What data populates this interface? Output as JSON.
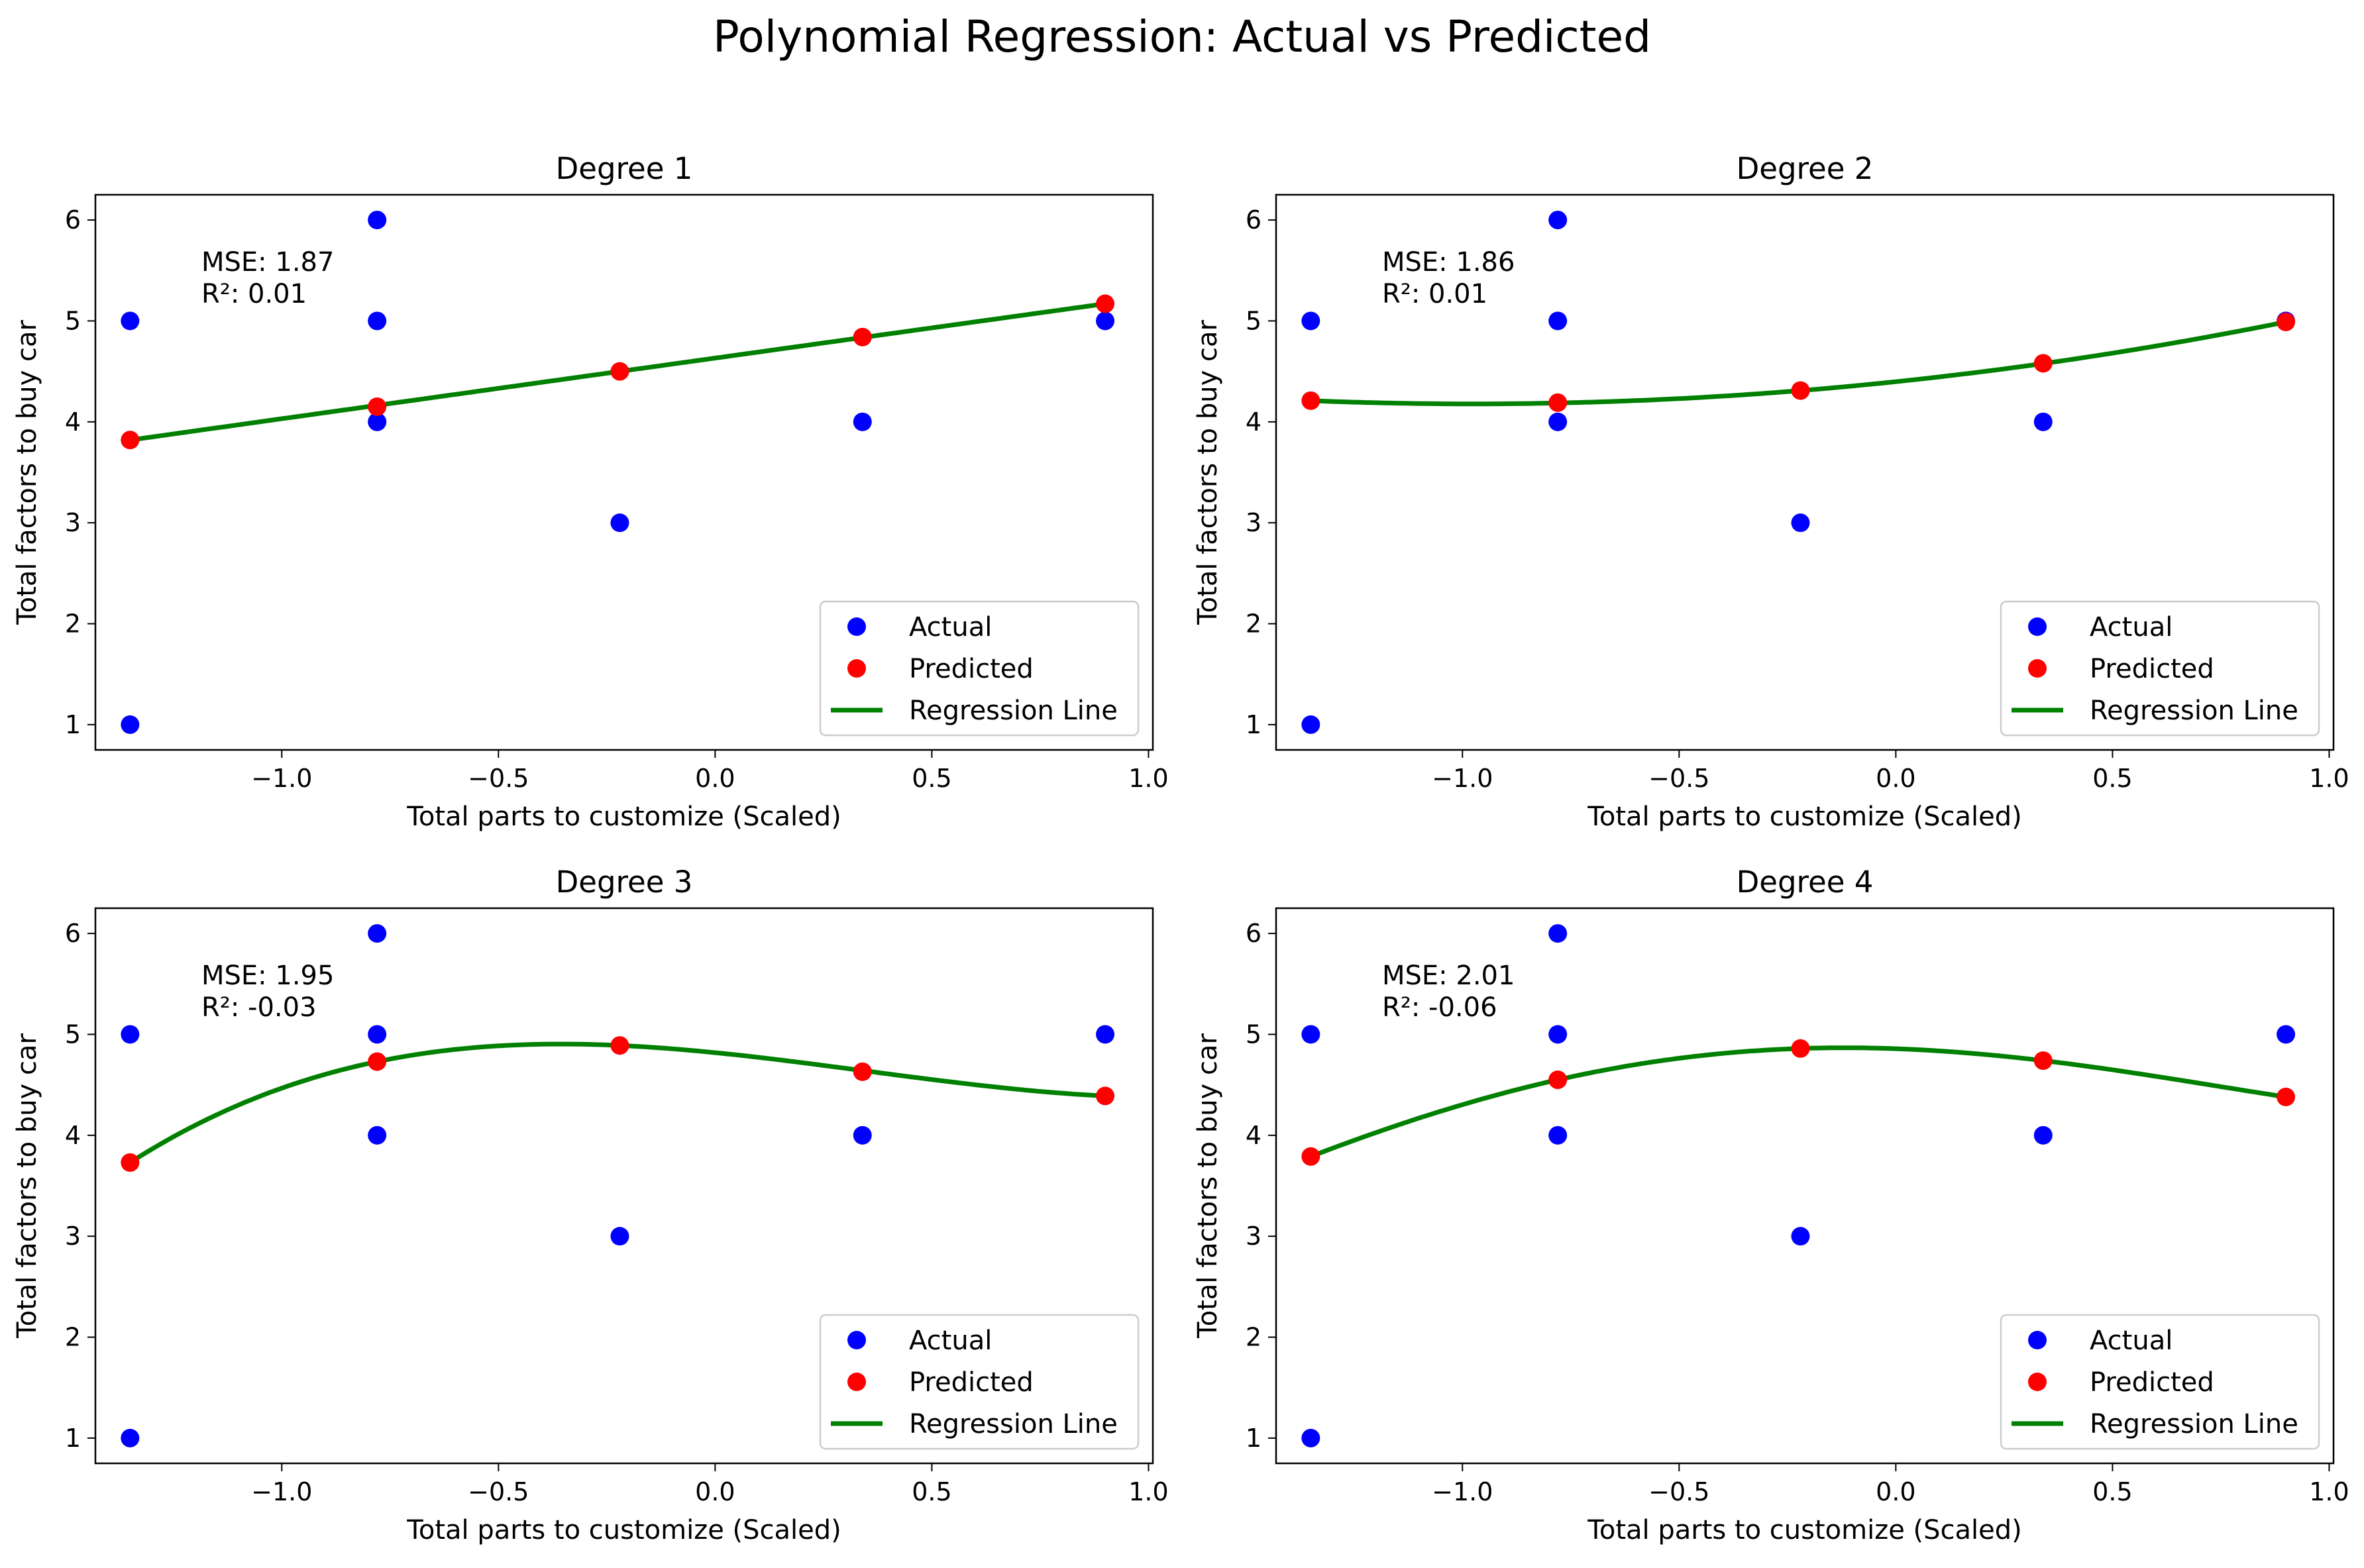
{
  "figure": {
    "suptitle": "Polynomial Regression: Actual vs Predicted"
  },
  "colors": {
    "actual": "#0000ff",
    "predicted": "#ff0000",
    "regression_line": "#008000",
    "axes": "#000000",
    "background": "#ffffff"
  },
  "chart_data": [
    {
      "type": "scatter",
      "title": "Degree 1",
      "xlabel": "Total parts to customize (Scaled)",
      "ylabel": "Total factors to buy car",
      "xlim": [
        -1.43,
        1.01
      ],
      "ylim": [
        0.75,
        6.25
      ],
      "xticks": [
        -1.0,
        -0.5,
        0.0,
        0.5,
        1.0
      ],
      "xtick_labels": [
        "−1.0",
        "−0.5",
        "0.0",
        "0.5",
        "1.0"
      ],
      "yticks": [
        1,
        2,
        3,
        4,
        5,
        6
      ],
      "ytick_labels": [
        "1",
        "2",
        "3",
        "4",
        "5",
        "6"
      ],
      "grid": false,
      "legend_position": "lower-right",
      "annotation": {
        "mse": "MSE: 1.87",
        "r2": "R²: 0.01"
      },
      "series": [
        {
          "name": "Actual",
          "kind": "scatter",
          "points": [
            [
              -1.35,
              5
            ],
            [
              -1.35,
              1
            ],
            [
              -0.78,
              6
            ],
            [
              -0.78,
              5
            ],
            [
              -0.78,
              4
            ],
            [
              -0.22,
              3
            ],
            [
              0.34,
              4
            ],
            [
              0.9,
              5
            ]
          ]
        },
        {
          "name": "Predicted",
          "kind": "scatter",
          "points": [
            [
              -1.35,
              3.82
            ],
            [
              -0.78,
              4.15
            ],
            [
              -0.22,
              4.5
            ],
            [
              0.34,
              4.84
            ],
            [
              0.9,
              5.17
            ]
          ]
        },
        {
          "name": "Regression Line",
          "kind": "line",
          "poly_fit": [
            [
              -1.35,
              3.82
            ],
            [
              -0.22,
              4.5
            ],
            [
              0.9,
              5.17
            ]
          ]
        }
      ]
    },
    {
      "type": "scatter",
      "title": "Degree 2",
      "xlabel": "Total parts to customize (Scaled)",
      "ylabel": "Total factors to buy car",
      "xlim": [
        -1.43,
        1.01
      ],
      "ylim": [
        0.75,
        6.25
      ],
      "xticks": [
        -1.0,
        -0.5,
        0.0,
        0.5,
        1.0
      ],
      "xtick_labels": [
        "−1.0",
        "−0.5",
        "0.0",
        "0.5",
        "1.0"
      ],
      "yticks": [
        1,
        2,
        3,
        4,
        5,
        6
      ],
      "ytick_labels": [
        "1",
        "2",
        "3",
        "4",
        "5",
        "6"
      ],
      "grid": false,
      "legend_position": "lower-right",
      "annotation": {
        "mse": "MSE: 1.86",
        "r2": "R²: 0.01"
      },
      "series": [
        {
          "name": "Actual",
          "kind": "scatter",
          "points": [
            [
              -1.35,
              5
            ],
            [
              -1.35,
              1
            ],
            [
              -0.78,
              6
            ],
            [
              -0.78,
              5
            ],
            [
              -0.78,
              4
            ],
            [
              -0.22,
              3
            ],
            [
              0.34,
              4
            ],
            [
              0.9,
              5
            ]
          ]
        },
        {
          "name": "Predicted",
          "kind": "scatter",
          "points": [
            [
              -1.35,
              4.21
            ],
            [
              -0.78,
              4.19
            ],
            [
              -0.22,
              4.31
            ],
            [
              0.34,
              4.58
            ],
            [
              0.9,
              4.99
            ]
          ]
        },
        {
          "name": "Regression Line",
          "kind": "line",
          "poly_fit": [
            [
              -1.35,
              4.21
            ],
            [
              -0.22,
              4.31
            ],
            [
              0.9,
              4.99
            ]
          ]
        }
      ]
    },
    {
      "type": "scatter",
      "title": "Degree 3",
      "xlabel": "Total parts to customize (Scaled)",
      "ylabel": "Total factors to buy car",
      "xlim": [
        -1.43,
        1.01
      ],
      "ylim": [
        0.75,
        6.25
      ],
      "xticks": [
        -1.0,
        -0.5,
        0.0,
        0.5,
        1.0
      ],
      "xtick_labels": [
        "−1.0",
        "−0.5",
        "0.0",
        "0.5",
        "1.0"
      ],
      "yticks": [
        1,
        2,
        3,
        4,
        5,
        6
      ],
      "ytick_labels": [
        "1",
        "2",
        "3",
        "4",
        "5",
        "6"
      ],
      "grid": false,
      "legend_position": "lower-right",
      "annotation": {
        "mse": "MSE: 1.95",
        "r2": "R²: -0.03"
      },
      "series": [
        {
          "name": "Actual",
          "kind": "scatter",
          "points": [
            [
              -1.35,
              5
            ],
            [
              -1.35,
              1
            ],
            [
              -0.78,
              6
            ],
            [
              -0.78,
              5
            ],
            [
              -0.78,
              4
            ],
            [
              -0.22,
              3
            ],
            [
              0.34,
              4
            ],
            [
              0.9,
              5
            ]
          ]
        },
        {
          "name": "Predicted",
          "kind": "scatter",
          "points": [
            [
              -1.35,
              3.73
            ],
            [
              -0.78,
              4.73
            ],
            [
              -0.22,
              4.89
            ],
            [
              0.34,
              4.63
            ],
            [
              0.9,
              4.39
            ]
          ]
        },
        {
          "name": "Regression Line",
          "kind": "line",
          "poly_fit": [
            [
              -1.35,
              3.73
            ],
            [
              -0.78,
              4.73
            ],
            [
              -0.22,
              4.89
            ],
            [
              0.9,
              4.39
            ]
          ]
        }
      ]
    },
    {
      "type": "scatter",
      "title": "Degree 4",
      "xlabel": "Total parts to customize (Scaled)",
      "ylabel": "Total factors to buy car",
      "xlim": [
        -1.43,
        1.01
      ],
      "ylim": [
        0.75,
        6.25
      ],
      "xticks": [
        -1.0,
        -0.5,
        0.0,
        0.5,
        1.0
      ],
      "xtick_labels": [
        "−1.0",
        "−0.5",
        "0.0",
        "0.5",
        "1.0"
      ],
      "yticks": [
        1,
        2,
        3,
        4,
        5,
        6
      ],
      "ytick_labels": [
        "1",
        "2",
        "3",
        "4",
        "5",
        "6"
      ],
      "grid": false,
      "legend_position": "lower-right",
      "annotation": {
        "mse": "MSE: 2.01",
        "r2": "R²: -0.06"
      },
      "series": [
        {
          "name": "Actual",
          "kind": "scatter",
          "points": [
            [
              -1.35,
              5
            ],
            [
              -1.35,
              1
            ],
            [
              -0.78,
              6
            ],
            [
              -0.78,
              5
            ],
            [
              -0.78,
              4
            ],
            [
              -0.22,
              3
            ],
            [
              0.34,
              4
            ],
            [
              0.9,
              5
            ]
          ]
        },
        {
          "name": "Predicted",
          "kind": "scatter",
          "points": [
            [
              -1.35,
              3.79
            ],
            [
              -0.78,
              4.55
            ],
            [
              -0.22,
              4.86
            ],
            [
              0.34,
              4.74
            ],
            [
              0.9,
              4.38
            ]
          ]
        },
        {
          "name": "Regression Line",
          "kind": "line",
          "poly_fit": [
            [
              -1.35,
              3.79
            ],
            [
              -0.78,
              4.55
            ],
            [
              -0.22,
              4.86
            ],
            [
              0.34,
              4.74
            ],
            [
              0.9,
              4.38
            ]
          ]
        }
      ]
    }
  ]
}
